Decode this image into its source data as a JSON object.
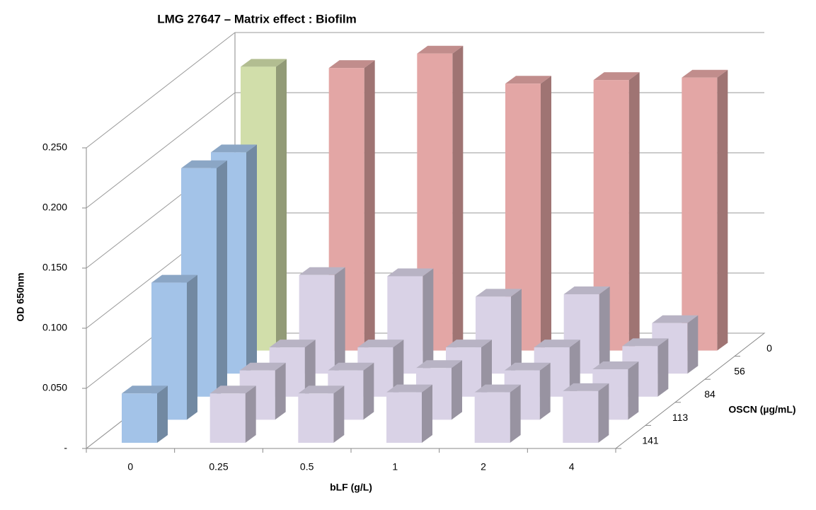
{
  "chart_data": {
    "type": "bar3d",
    "title": "LMG 27647 – Matrix effect : Biofilm",
    "x_label": "bLF (g/L)",
    "y_label": "OD 650nm",
    "z_label": "OSCN (µg/mL)",
    "categories": [
      "0",
      "0.25",
      "0.5",
      "1",
      "2",
      "4"
    ],
    "ylim": [
      0,
      0.25
    ],
    "yticks": [
      {
        "value": 0,
        "label": "-"
      },
      {
        "value": 0.05,
        "label": "0.050"
      },
      {
        "value": 0.1,
        "label": "0.100"
      },
      {
        "value": 0.15,
        "label": "0.150"
      },
      {
        "value": 0.2,
        "label": "0.200"
      },
      {
        "value": 0.25,
        "label": "0.250"
      }
    ],
    "grid": true,
    "series": [
      {
        "name": "0",
        "colors": [
          "#d1deaa",
          "#e3a6a5",
          "#e3a6a5",
          "#e3a6a5",
          "#e3a6a5",
          "#e3a6a5"
        ],
        "values": [
          0.236,
          0.235,
          0.247,
          0.222,
          0.225,
          0.227
        ]
      },
      {
        "name": "56",
        "colors": [
          "#a3c3e8",
          "#d9d2e6",
          "#d9d2e6",
          "#d9d2e6",
          "#d9d2e6",
          "#d9d2e6"
        ],
        "values": [
          0.184,
          0.082,
          0.081,
          0.064,
          0.066,
          0.042
        ]
      },
      {
        "name": "84",
        "colors": [
          "#a3c3e8",
          "#d9d2e6",
          "#d9d2e6",
          "#d9d2e6",
          "#d9d2e6",
          "#d9d2e6"
        ],
        "values": [
          0.19,
          0.041,
          0.041,
          0.041,
          0.041,
          0.042
        ]
      },
      {
        "name": "113",
        "colors": [
          "#a3c3e8",
          "#d9d2e6",
          "#d9d2e6",
          "#d9d2e6",
          "#d9d2e6",
          "#d9d2e6"
        ],
        "values": [
          0.114,
          0.041,
          0.041,
          0.043,
          0.041,
          0.042
        ]
      },
      {
        "name": "141",
        "colors": [
          "#a3c3e8",
          "#d9d2e6",
          "#d9d2e6",
          "#d9d2e6",
          "#d9d2e6",
          "#d9d2e6"
        ],
        "values": [
          0.041,
          0.041,
          0.041,
          0.042,
          0.042,
          0.043
        ]
      }
    ]
  }
}
